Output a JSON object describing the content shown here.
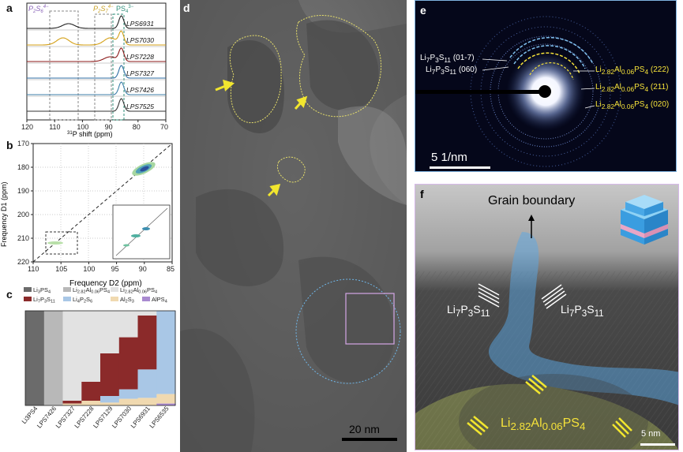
{
  "panels": {
    "a": {
      "label": "a",
      "species": [
        {
          "text": "P",
          "sub": "2",
          "mid": "S",
          "sub2": "6",
          "sup": "4−",
          "color": "#8a63b8"
        },
        {
          "text": "P",
          "sub": "2",
          "mid": "S",
          "sub2": "7",
          "sup": "4−",
          "color": "#c9a227"
        },
        {
          "text": "PS",
          "sub": "4",
          "sup": "3−",
          "color": "#2f8f7a"
        }
      ],
      "samples": [
        "LPS6931",
        "LPS7030",
        "LPS7228",
        "LPS7327",
        "LPS7426",
        "LPS7525"
      ],
      "sample_colors": [
        "#222222",
        "#d4a017",
        "#8b1a1a",
        "#2f6fa5",
        "#3d7fa8",
        "#333333"
      ],
      "x_ticks": [
        "120",
        "110",
        "100",
        "90",
        "80",
        "70"
      ],
      "xlabel_sup": "31",
      "xlabel": "P shift (ppm)"
    },
    "b": {
      "label": "b",
      "y_ticks": [
        "170",
        "180",
        "190",
        "200",
        "210",
        "220"
      ],
      "x_ticks": [
        "110",
        "105",
        "100",
        "95",
        "90",
        "85"
      ],
      "ylabel": "Frequency D1 (ppm)",
      "xlabel": "Frequency D2 (ppm)"
    },
    "c": {
      "label": "c",
      "legend": [
        {
          "name": "Li3PS4",
          "color": "#6b6b6b"
        },
        {
          "name": "Li2.82Al0.06PS4",
          "color": "#b8b8b8"
        },
        {
          "name": "Li2.82Al0.06PS4",
          "color": "#e2e2e2"
        },
        {
          "name": "Li7P3S11",
          "color": "#8b2a2a"
        },
        {
          "name": "Li4P2S6",
          "color": "#a9c7e6"
        },
        {
          "name": "Al2S3",
          "color": "#f0d9b0"
        },
        {
          "name": "AlPS4",
          "color": "#a98ad0"
        }
      ],
      "samples": [
        "Li3PS4",
        "LPS7426",
        "LPS7327",
        "LPS7228",
        "LPS7129",
        "LPS7030",
        "LPS6931",
        "LPS6535"
      ]
    },
    "d": {
      "label": "d",
      "scale_bar": "20 nm"
    },
    "e": {
      "label": "e",
      "scale_bar": "5 1/nm",
      "left_labels": [
        "Li7P3S11 (01-7)",
        "Li7P3S11 (060)"
      ],
      "right_labels": [
        "Li2.82Al0.06PS4 (222)",
        "Li2.82Al0.06PS4 (211)",
        "Li2.82Al0.06PS4 (020)"
      ],
      "right_label_color": "#f5e23a"
    },
    "f": {
      "label": "f",
      "grain_boundary": "Grain boundary",
      "phase_left": "Li7P3S11",
      "phase_right": "Li7P3S11",
      "phase_bottom": "Li2.82Al0.06PS4",
      "scale_bar": "5 nm"
    }
  },
  "chart_data": [
    {
      "type": "line",
      "panel": "a",
      "xlabel": "31P shift (ppm)",
      "xlim": [
        120,
        70
      ],
      "series": [
        {
          "name": "LPS6931",
          "peaks_ppm": [
            105,
            86
          ]
        },
        {
          "name": "LPS7030",
          "peaks_ppm": [
            107,
            90,
            86
          ]
        },
        {
          "name": "LPS7228",
          "peaks_ppm": [
            90,
            86
          ]
        },
        {
          "name": "LPS7327",
          "peaks_ppm": [
            86
          ]
        },
        {
          "name": "LPS7426",
          "peaks_ppm": [
            86
          ]
        },
        {
          "name": "LPS7525",
          "peaks_ppm": [
            86
          ]
        }
      ]
    },
    {
      "type": "scatter",
      "panel": "b",
      "xlabel": "Frequency D2 (ppm)",
      "ylabel": "Frequency D1 (ppm)",
      "xlim": [
        112,
        85
      ],
      "ylim": [
        222,
        168
      ]
    },
    {
      "type": "bar",
      "panel": "c",
      "stacked": true,
      "categories": [
        "Li3PS4",
        "LPS7426",
        "LPS7327",
        "LPS7228",
        "LPS7129",
        "LPS7030",
        "LPS6931",
        "LPS6535"
      ],
      "series": [
        {
          "name": "Li3PS4",
          "values": [
            100,
            0,
            0,
            0,
            0,
            0,
            0,
            0
          ]
        },
        {
          "name": "Li2.82Al0.06PS4 (hatched)",
          "values": [
            0,
            100,
            0,
            0,
            0,
            0,
            0,
            0
          ]
        },
        {
          "name": "Li2.82Al0.06PS4",
          "values": [
            0,
            0,
            95,
            75,
            45,
            28,
            5,
            0
          ]
        },
        {
          "name": "Li7P3S11",
          "values": [
            0,
            0,
            3,
            20,
            45,
            55,
            57,
            0
          ]
        },
        {
          "name": "Li4P2S6",
          "values": [
            0,
            0,
            0,
            0,
            7,
            10,
            30,
            88
          ]
        },
        {
          "name": "Al2S3",
          "values": [
            0,
            0,
            2,
            5,
            3,
            7,
            8,
            10
          ]
        },
        {
          "name": "AlPS4",
          "values": [
            0,
            0,
            0,
            0,
            0,
            0,
            0,
            2
          ]
        }
      ]
    }
  ]
}
